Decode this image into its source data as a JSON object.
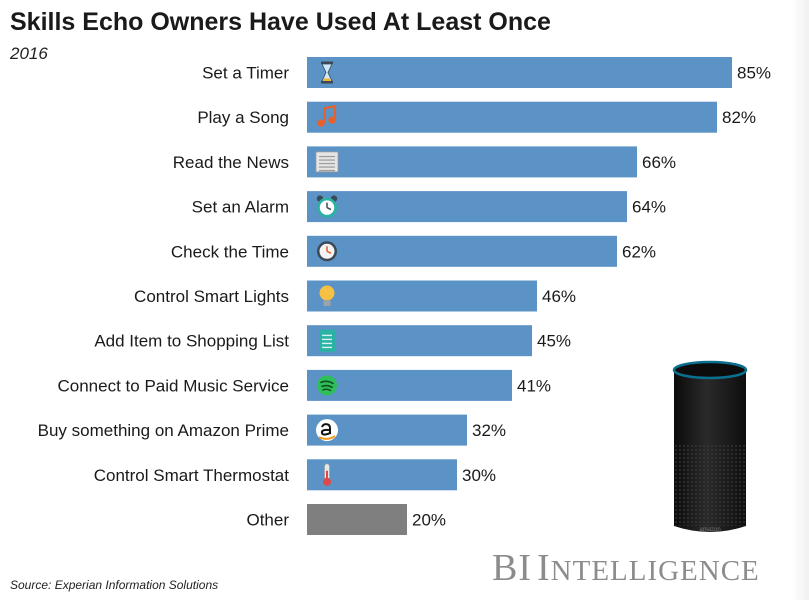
{
  "title": "Skills Echo Owners Have Used At Least Once",
  "subtitle": "2016",
  "source": "Source: Experian Information Solutions",
  "brand": {
    "first": "BI",
    "second_initial": "I",
    "second_rest": "NTELLIGENCE"
  },
  "colors": {
    "bar": "#5b93c6",
    "other_bar": "#7f7f7f",
    "brand": "#8c8c8c"
  },
  "chart_data": {
    "type": "bar",
    "orientation": "horizontal",
    "value_suffix": "%",
    "xlim": [
      0,
      85
    ],
    "grid": false,
    "legend": "none",
    "categories": [
      "Set a Timer",
      "Play a Song",
      "Read the News",
      "Set an Alarm",
      "Check the Time",
      "Control Smart Lights",
      "Add Item to Shopping List",
      "Connect to Paid Music Service",
      "Buy something on Amazon Prime",
      "Control Smart Thermostat",
      "Other"
    ],
    "values": [
      85,
      82,
      66,
      64,
      62,
      46,
      45,
      41,
      32,
      30,
      20
    ],
    "icons": [
      "hourglass-icon",
      "music-note-icon",
      "newspaper-icon",
      "alarm-clock-icon",
      "clock-icon",
      "light-bulb-icon",
      "notepad-icon",
      "spotify-icon",
      "amazon-icon",
      "thermometer-icon",
      ""
    ]
  }
}
